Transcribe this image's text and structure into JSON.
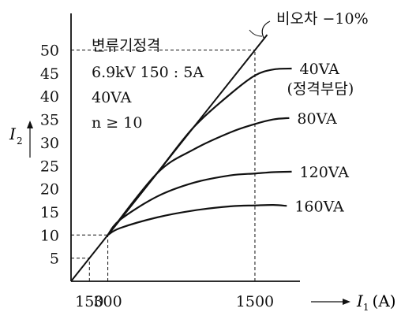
{
  "chart_data": {
    "type": "line",
    "title": "",
    "xlabel": "I1 (A)",
    "ylabel": "I2",
    "xlim": [
      0,
      2000
    ],
    "ylim": [
      0,
      52
    ],
    "x_ticks": [
      {
        "value": 150,
        "label": "150"
      },
      {
        "value": 300,
        "label": "300"
      },
      {
        "value": 1500,
        "label": "1500"
      }
    ],
    "y_ticks": [
      {
        "value": 5,
        "label": "5"
      },
      {
        "value": 10,
        "label": "10"
      },
      {
        "value": 15,
        "label": "15"
      },
      {
        "value": 20,
        "label": "20"
      },
      {
        "value": 25,
        "label": "25"
      },
      {
        "value": 30,
        "label": "30"
      },
      {
        "value": 35,
        "label": "35"
      },
      {
        "value": 40,
        "label": "40"
      },
      {
        "value": 45,
        "label": "45"
      },
      {
        "value": 50,
        "label": "50"
      }
    ],
    "ideal_line": {
      "x": [
        0,
        1600
      ],
      "y": [
        0,
        53.3
      ]
    },
    "series": [
      {
        "name": "40VA",
        "name_extra": "(정격부담)",
        "x": [
          300,
          700,
          1000,
          1300,
          1500,
          1650,
          1800
        ],
        "y": [
          10,
          23.3,
          33.3,
          40.5,
          44.5,
          45.8,
          46
        ]
      },
      {
        "name": "80VA",
        "x": [
          300,
          700,
          1000,
          1300,
          1500,
          1650,
          1780
        ],
        "y": [
          10,
          23.3,
          28.5,
          32.2,
          34,
          35,
          35.3
        ]
      },
      {
        "name": "120VA",
        "x": [
          300,
          400,
          700,
          1000,
          1300,
          1500,
          1650,
          1800
        ],
        "y": [
          10,
          13.3,
          18.3,
          21.3,
          22.9,
          23.3,
          23.6,
          23.7
        ]
      },
      {
        "name": "160VA",
        "x": [
          300,
          400,
          700,
          1000,
          1300,
          1500,
          1650,
          1760
        ],
        "y": [
          10,
          11.5,
          13.8,
          15.3,
          16.2,
          16.4,
          16.5,
          16.3
        ]
      }
    ],
    "reference_lines": [
      {
        "type": "horizontal",
        "y": 50,
        "x_to": 1500
      },
      {
        "type": "horizontal",
        "y": 10,
        "x_to": 300
      },
      {
        "type": "horizontal",
        "y": 5,
        "x_to": 150
      },
      {
        "type": "vertical",
        "x": 150,
        "y_to": 5
      },
      {
        "type": "vertical",
        "x": 300,
        "y_to": 10
      },
      {
        "type": "vertical",
        "x": 1500,
        "y_to": 50
      }
    ],
    "annotations": {
      "ratio_error": "비오차 −10%",
      "spec_lines": [
        "변류기정격",
        "6.9kV 150 : 5A",
        "40VA",
        "n ≥ 10"
      ]
    }
  }
}
